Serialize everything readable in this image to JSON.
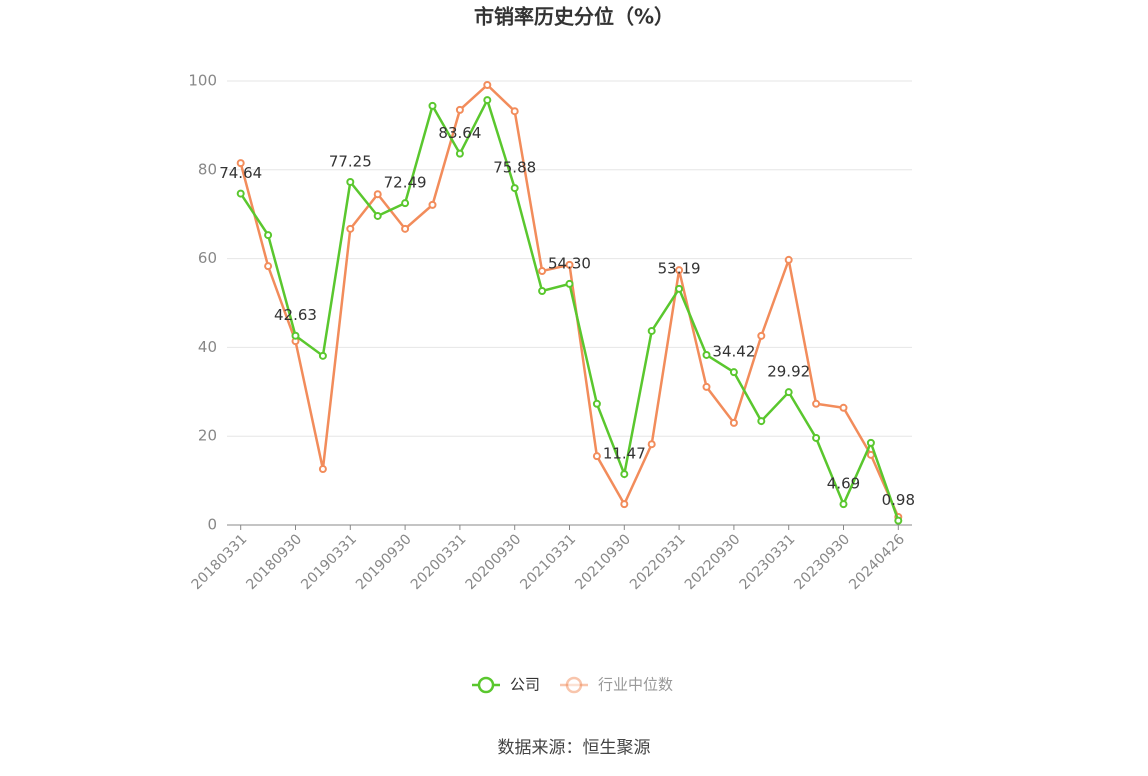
{
  "chart_data": {
    "type": "line",
    "title": "市销率历史分位（%）",
    "categories": [
      "20180331",
      null,
      "20180930",
      null,
      "20190331",
      null,
      "20190930",
      null,
      "20200331",
      null,
      "20200930",
      null,
      "20210331",
      null,
      "20210930",
      null,
      "20220331",
      null,
      "20220930",
      null,
      "20230331",
      null,
      "20230930",
      null,
      "20240426"
    ],
    "series": [
      {
        "name": "公司",
        "color": "#5ac72e",
        "values": [
          74.64,
          65.3,
          42.63,
          38.1,
          77.25,
          69.6,
          72.49,
          94.4,
          83.64,
          95.7,
          75.88,
          52.7,
          54.3,
          27.3,
          11.47,
          43.7,
          53.19,
          38.3,
          34.42,
          23.4,
          29.92,
          19.6,
          4.69,
          18.5,
          0.98
        ],
        "value_labels": [
          "74.64",
          null,
          "42.63",
          null,
          "77.25",
          null,
          "72.49",
          null,
          "83.64",
          null,
          "75.88",
          null,
          "54.30",
          null,
          "11.47",
          null,
          "53.19",
          null,
          "34.42",
          null,
          "29.92",
          null,
          "4.69",
          null,
          "0.98"
        ]
      },
      {
        "name": "行业中位数",
        "color": "#f28c5b",
        "values": [
          81.5,
          58.3,
          41.4,
          12.6,
          66.7,
          74.5,
          66.7,
          72.1,
          93.5,
          99.1,
          93.2,
          57.2,
          58.6,
          15.5,
          4.7,
          18.2,
          57.4,
          31.1,
          23.0,
          42.6,
          59.7,
          27.3,
          26.4,
          15.8,
          1.8
        ]
      }
    ],
    "ylim": [
      0,
      100
    ],
    "yticks": [
      0,
      20,
      40,
      60,
      80,
      100
    ],
    "grid": true,
    "source": "数据来源：恒生聚源"
  }
}
